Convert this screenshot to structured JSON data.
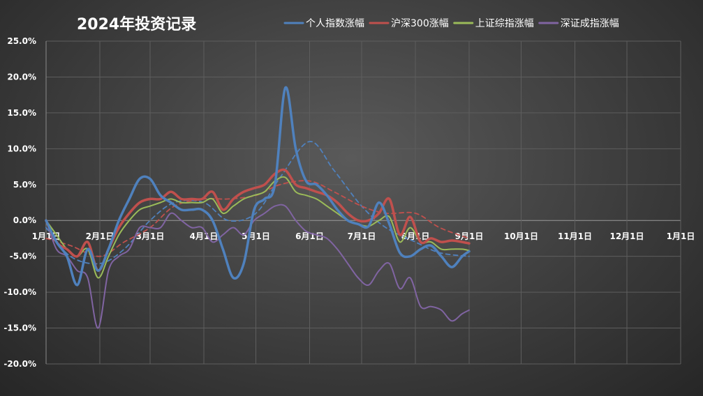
{
  "chart_data": {
    "type": "line",
    "title": "2024年投资记录",
    "y_unit": "%",
    "ylim": [
      -20,
      25
    ],
    "yticks": [
      "25.0%",
      "20.0%",
      "15.0%",
      "10.0%",
      "5.0%",
      "0.0%",
      "-5.0%",
      "-10.0%",
      "-15.0%",
      "-20.0%"
    ],
    "ytick_values": [
      25,
      20,
      15,
      10,
      5,
      0,
      -5,
      -10,
      -15,
      -20
    ],
    "xlim": [
      "2024-01-01",
      "2025-01-01"
    ],
    "xticks": [
      "1月1日",
      "2月1日",
      "3月1日",
      "4月1日",
      "5月1日",
      "6月1日",
      "7月1日",
      "8月1日",
      "9月1日",
      "10月1日",
      "11月1日",
      "12月1日",
      "1月1日"
    ],
    "xtick_dates": [
      "2024-01-01",
      "2024-02-01",
      "2024-03-01",
      "2024-04-01",
      "2024-05-01",
      "2024-06-01",
      "2024-07-01",
      "2024-08-01",
      "2024-09-01",
      "2024-10-01",
      "2024-11-01",
      "2024-12-01",
      "2025-01-01"
    ],
    "grid": true,
    "legend_position": "top",
    "series": [
      {
        "name": "个人指数涨幅",
        "color": "#4f81bd",
        "x": [
          "2024-01-01",
          "2024-01-07",
          "2024-01-13",
          "2024-01-19",
          "2024-01-25",
          "2024-01-31",
          "2024-02-06",
          "2024-02-12",
          "2024-02-18",
          "2024-02-24",
          "2024-03-01",
          "2024-03-07",
          "2024-03-13",
          "2024-03-19",
          "2024-03-25",
          "2024-03-31",
          "2024-04-06",
          "2024-04-12",
          "2024-04-18",
          "2024-04-24",
          "2024-04-30",
          "2024-05-06",
          "2024-05-12",
          "2024-05-18",
          "2024-05-24",
          "2024-05-30",
          "2024-06-05",
          "2024-06-11",
          "2024-06-17",
          "2024-06-23",
          "2024-06-29",
          "2024-07-05",
          "2024-07-11",
          "2024-07-17",
          "2024-07-23",
          "2024-07-29",
          "2024-08-04",
          "2024-08-10",
          "2024-08-16",
          "2024-08-22",
          "2024-08-28",
          "2024-09-01"
        ],
        "y": [
          0,
          -3,
          -5,
          -9,
          -4,
          -7,
          -4,
          0,
          3,
          5.8,
          5.8,
          3.5,
          2.5,
          1.5,
          1.5,
          1.5,
          0,
          -4,
          -8,
          -6,
          1.5,
          3,
          5,
          18.5,
          10,
          5.5,
          5,
          3.5,
          1.5,
          0,
          -0.5,
          -0.8,
          2.5,
          -0.5,
          -4.5,
          -5,
          -4,
          -3.5,
          -5,
          -6.5,
          -5,
          -4.3
        ]
      },
      {
        "name": "沪深300涨幅",
        "color": "#c0504d",
        "x": [
          "2024-01-01",
          "2024-01-07",
          "2024-01-13",
          "2024-01-19",
          "2024-01-25",
          "2024-01-31",
          "2024-02-06",
          "2024-02-12",
          "2024-02-18",
          "2024-02-24",
          "2024-03-01",
          "2024-03-07",
          "2024-03-13",
          "2024-03-19",
          "2024-03-25",
          "2024-03-31",
          "2024-04-06",
          "2024-04-12",
          "2024-04-18",
          "2024-04-24",
          "2024-04-30",
          "2024-05-06",
          "2024-05-12",
          "2024-05-18",
          "2024-05-24",
          "2024-05-30",
          "2024-06-05",
          "2024-06-11",
          "2024-06-17",
          "2024-06-23",
          "2024-06-29",
          "2024-07-05",
          "2024-07-11",
          "2024-07-17",
          "2024-07-23",
          "2024-07-29",
          "2024-08-04",
          "2024-08-10",
          "2024-08-16",
          "2024-08-22",
          "2024-08-28",
          "2024-09-01"
        ],
        "y": [
          0,
          -3,
          -4,
          -5,
          -3,
          -7,
          -4,
          -1,
          1,
          2.5,
          3,
          3,
          4,
          3,
          3,
          3,
          4,
          1.5,
          3,
          4,
          4.5,
          5,
          6.5,
          7,
          5,
          4.5,
          4,
          3.5,
          2.5,
          1,
          0,
          0,
          1,
          3,
          -2,
          0.5,
          -3,
          -2.5,
          -3,
          -2.8,
          -3,
          -3.2
        ]
      },
      {
        "name": "上证综指涨幅",
        "color": "#9bbb59",
        "x": [
          "2024-01-01",
          "2024-01-07",
          "2024-01-13",
          "2024-01-19",
          "2024-01-25",
          "2024-01-31",
          "2024-02-06",
          "2024-02-12",
          "2024-02-18",
          "2024-02-24",
          "2024-03-01",
          "2024-03-07",
          "2024-03-13",
          "2024-03-19",
          "2024-03-25",
          "2024-03-31",
          "2024-04-06",
          "2024-04-12",
          "2024-04-18",
          "2024-04-24",
          "2024-04-30",
          "2024-05-06",
          "2024-05-12",
          "2024-05-18",
          "2024-05-24",
          "2024-05-30",
          "2024-06-05",
          "2024-06-11",
          "2024-06-17",
          "2024-06-23",
          "2024-06-29",
          "2024-07-05",
          "2024-07-11",
          "2024-07-17",
          "2024-07-23",
          "2024-07-29",
          "2024-08-04",
          "2024-08-10",
          "2024-08-16",
          "2024-08-22",
          "2024-08-28",
          "2024-09-01"
        ],
        "y": [
          0,
          -2,
          -4,
          -5,
          -4,
          -8,
          -5,
          -2,
          0,
          1.5,
          2,
          2.5,
          3,
          2.5,
          2.5,
          2.5,
          3,
          1,
          2,
          3,
          3.5,
          4,
          5.5,
          6,
          4,
          3.5,
          3,
          2,
          1,
          0,
          -0.5,
          -0.8,
          0,
          0.5,
          -3,
          -1,
          -3,
          -3,
          -4,
          -4,
          -4,
          -4.2
        ]
      },
      {
        "name": "深证成指涨幅",
        "color": "#8064a2",
        "x": [
          "2024-01-01",
          "2024-01-07",
          "2024-01-13",
          "2024-01-19",
          "2024-01-25",
          "2024-01-31",
          "2024-02-06",
          "2024-02-12",
          "2024-02-18",
          "2024-02-24",
          "2024-03-01",
          "2024-03-07",
          "2024-03-13",
          "2024-03-19",
          "2024-03-25",
          "2024-03-31",
          "2024-04-06",
          "2024-04-12",
          "2024-04-18",
          "2024-04-24",
          "2024-04-30",
          "2024-05-06",
          "2024-05-12",
          "2024-05-18",
          "2024-05-24",
          "2024-05-30",
          "2024-06-05",
          "2024-06-11",
          "2024-06-17",
          "2024-06-23",
          "2024-06-29",
          "2024-07-05",
          "2024-07-11",
          "2024-07-17",
          "2024-07-23",
          "2024-07-29",
          "2024-08-04",
          "2024-08-10",
          "2024-08-16",
          "2024-08-22",
          "2024-08-28",
          "2024-09-01"
        ],
        "y": [
          0,
          -4,
          -5,
          -7,
          -8,
          -15,
          -7,
          -5,
          -4,
          -1,
          -1,
          -1,
          1,
          0,
          -1,
          -1,
          -3,
          -2,
          -1,
          -2,
          0,
          1,
          2,
          2,
          0,
          -1.5,
          -2,
          -2.5,
          -4,
          -6,
          -8,
          -9,
          -7,
          -6,
          -9.5,
          -8,
          -12,
          -12,
          -12.5,
          -14,
          -13,
          -12.5
        ]
      }
    ],
    "trendlines": [
      {
        "of": "个人指数涨幅",
        "color": "#4f81bd",
        "style": "dashed",
        "x": [
          "2024-01-01",
          "2024-01-15",
          "2024-02-01",
          "2024-02-15",
          "2024-03-01",
          "2024-03-15",
          "2024-04-01",
          "2024-04-15",
          "2024-05-01",
          "2024-05-15",
          "2024-06-01",
          "2024-06-15",
          "2024-07-01",
          "2024-07-15",
          "2024-08-01",
          "2024-08-15",
          "2024-09-01"
        ],
        "y": [
          -1,
          -5,
          -6,
          -4,
          0,
          2.5,
          2.5,
          0,
          1,
          6,
          11,
          7,
          2,
          -1,
          -3,
          -4.5,
          -5
        ]
      },
      {
        "of": "沪深300涨幅",
        "color": "#c0504d",
        "style": "dashed",
        "x": [
          "2024-01-01",
          "2024-01-15",
          "2024-02-01",
          "2024-02-15",
          "2024-03-01",
          "2024-03-15",
          "2024-04-01",
          "2024-04-15",
          "2024-05-01",
          "2024-05-15",
          "2024-06-01",
          "2024-06-15",
          "2024-07-01",
          "2024-07-15",
          "2024-08-01",
          "2024-08-15",
          "2024-09-01"
        ],
        "y": [
          -2.5,
          -3.5,
          -5,
          -3,
          -1,
          2,
          3,
          3,
          3.5,
          5,
          5.5,
          4,
          2,
          1,
          1,
          -1,
          -2.5
        ]
      }
    ]
  }
}
